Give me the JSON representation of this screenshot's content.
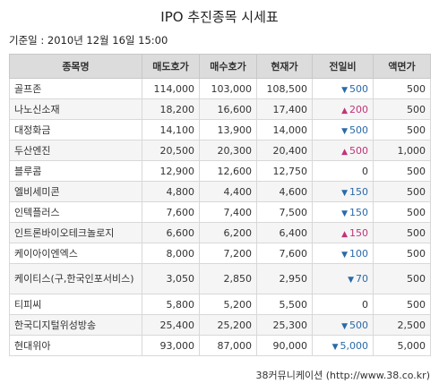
{
  "title": "IPO 추진종목 시세표",
  "date_line": "기준일 : 2010년 12월 16일 15:00",
  "table": {
    "headers": [
      "종목명",
      "매도호가",
      "매수호가",
      "현재가",
      "전일비",
      "액면가"
    ],
    "rows": [
      {
        "name": "골프존",
        "ask": "114,000",
        "bid": "103,000",
        "price": "108,500",
        "dir": "down",
        "change": "500",
        "par": "500"
      },
      {
        "name": "나노신소재",
        "ask": "18,200",
        "bid": "16,600",
        "price": "17,400",
        "dir": "up",
        "change": "200",
        "par": "500"
      },
      {
        "name": "대정화금",
        "ask": "14,100",
        "bid": "13,900",
        "price": "14,000",
        "dir": "down",
        "change": "500",
        "par": "500"
      },
      {
        "name": "두산엔진",
        "ask": "20,500",
        "bid": "20,300",
        "price": "20,400",
        "dir": "up",
        "change": "500",
        "par": "1,000"
      },
      {
        "name": "블루콤",
        "ask": "12,900",
        "bid": "12,600",
        "price": "12,750",
        "dir": "flat",
        "change": "0",
        "par": "500"
      },
      {
        "name": "엘비세미콘",
        "ask": "4,800",
        "bid": "4,400",
        "price": "4,600",
        "dir": "down",
        "change": "150",
        "par": "500"
      },
      {
        "name": "인텍플러스",
        "ask": "7,600",
        "bid": "7,400",
        "price": "7,500",
        "dir": "down",
        "change": "150",
        "par": "500"
      },
      {
        "name": "인트론바이오테크놀로지",
        "ask": "6,600",
        "bid": "6,200",
        "price": "6,400",
        "dir": "up",
        "change": "150",
        "par": "500"
      },
      {
        "name": "케이아이엔엑스",
        "ask": "8,000",
        "bid": "7,200",
        "price": "7,600",
        "dir": "down",
        "change": "100",
        "par": "500"
      },
      {
        "name": "케이티스(구,한국인포서비스)",
        "ask": "3,050",
        "bid": "2,850",
        "price": "2,950",
        "dir": "down",
        "change": "70",
        "par": "500"
      },
      {
        "name": "티피씨",
        "ask": "5,800",
        "bid": "5,200",
        "price": "5,500",
        "dir": "flat",
        "change": "0",
        "par": "500"
      },
      {
        "name": "한국디지털위성방송",
        "ask": "25,400",
        "bid": "25,200",
        "price": "25,300",
        "dir": "down",
        "change": "500",
        "par": "2,500"
      },
      {
        "name": "현대위아",
        "ask": "93,000",
        "bid": "87,000",
        "price": "90,000",
        "dir": "down",
        "change": "5,000",
        "par": "5,000"
      }
    ]
  },
  "icons": {
    "up": "triangle-up-icon",
    "down": "triangle-down-icon"
  },
  "colors": {
    "up": "#c0347a",
    "down": "#2a6aa8",
    "header_bg": "#dcdcdc",
    "stripe": "#f5f5f5"
  },
  "footer": "38커뮤니케이션 (http://www.38.co.kr)"
}
